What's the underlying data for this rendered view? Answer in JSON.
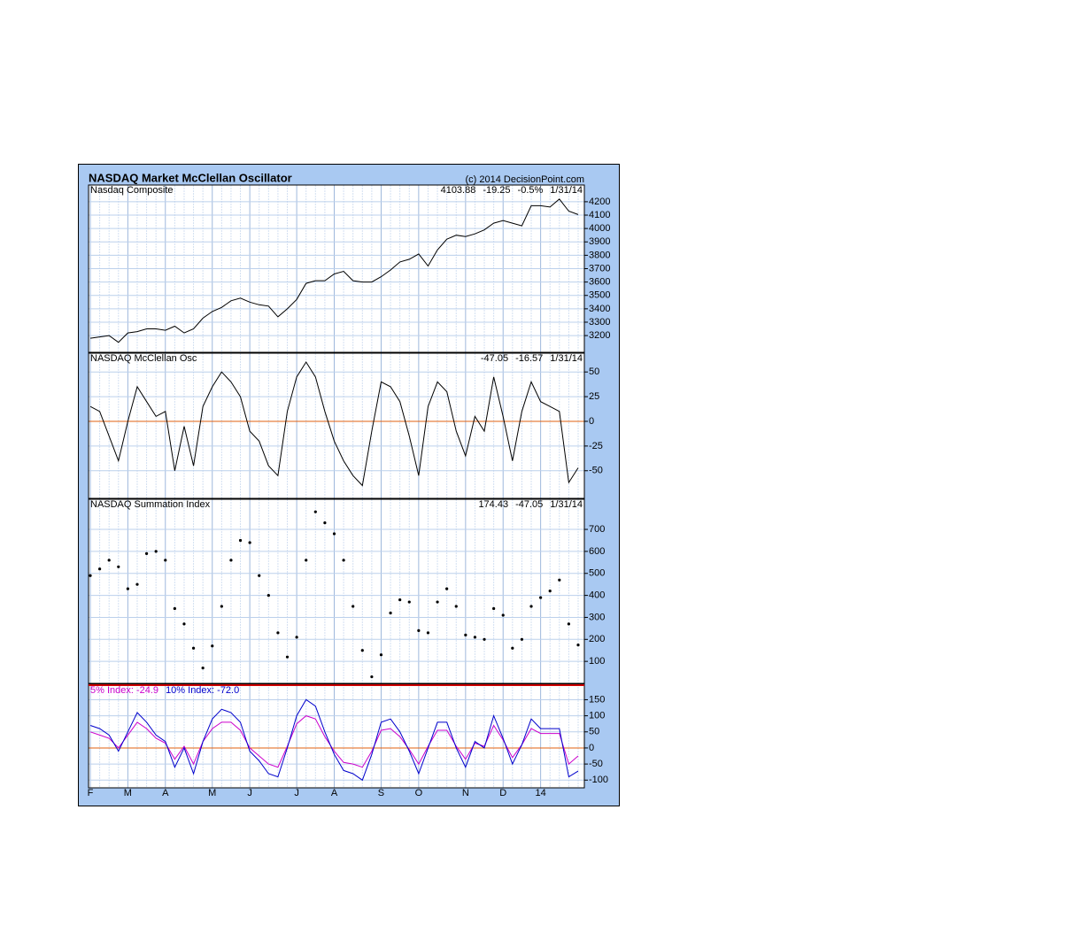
{
  "header": {
    "title": "NASDAQ Market McClellan Oscillator",
    "copyright": "(c) 2014 DecisionPoint.com"
  },
  "chart_data": [
    {
      "type": "line",
      "subtitle": "Nasdaq Composite",
      "info": [
        "4103.88",
        "-19.25",
        "-0.5%",
        "1/31/14"
      ],
      "color": "#000000",
      "values": [
        3180,
        3190,
        3200,
        3150,
        3220,
        3230,
        3250,
        3250,
        3240,
        3270,
        3220,
        3250,
        3330,
        3380,
        3410,
        3460,
        3480,
        3450,
        3430,
        3420,
        3340,
        3400,
        3470,
        3590,
        3610,
        3610,
        3660,
        3680,
        3610,
        3600,
        3600,
        3640,
        3690,
        3750,
        3770,
        3810,
        3720,
        3840,
        3920,
        3950,
        3940,
        3960,
        3990,
        4040,
        4060,
        4040,
        4020,
        4170,
        4170,
        4160,
        4220,
        4130,
        4104
      ],
      "ylim": [
        3075,
        4325
      ],
      "yticks": [
        3200,
        3300,
        3400,
        3500,
        3600,
        3700,
        3800,
        3900,
        4000,
        4100,
        4200
      ]
    },
    {
      "type": "line",
      "subtitle": "NASDAQ McClellan Osc",
      "info": [
        "-47.05",
        "-16.57",
        "1/31/14"
      ],
      "color": "#000000",
      "values": [
        15,
        10,
        -15,
        -40,
        0,
        35,
        20,
        5,
        10,
        -50,
        -5,
        -45,
        15,
        35,
        50,
        40,
        25,
        -10,
        -20,
        -45,
        -55,
        10,
        45,
        60,
        45,
        10,
        -20,
        -40,
        -55,
        -65,
        -10,
        40,
        35,
        20,
        -15,
        -55,
        15,
        40,
        30,
        -10,
        -35,
        5,
        -10,
        45,
        5,
        -40,
        10,
        40,
        20,
        15,
        10,
        -62,
        -47.05
      ],
      "ylim": [
        -78,
        69
      ],
      "yticks": [
        -50,
        -25,
        0,
        25,
        50
      ],
      "zero_line_color": "#e06010"
    },
    {
      "type": "scatter",
      "subtitle": "NASDAQ Summation Index",
      "info": [
        "174.43",
        "-47.05",
        "1/31/14"
      ],
      "color": "#000000",
      "values": [
        490,
        520,
        560,
        530,
        430,
        450,
        590,
        600,
        560,
        340,
        270,
        160,
        70,
        170,
        350,
        560,
        650,
        640,
        490,
        400,
        230,
        120,
        210,
        560,
        780,
        730,
        680,
        560,
        350,
        150,
        30,
        130,
        320,
        380,
        370,
        240,
        230,
        370,
        430,
        350,
        220,
        210,
        200,
        340,
        310,
        160,
        200,
        350,
        390,
        420,
        470,
        270,
        174.43
      ],
      "ylim": [
        0,
        837
      ],
      "yticks": [
        100,
        200,
        300,
        400,
        500,
        600,
        700
      ]
    },
    {
      "type": "line",
      "categories": [
        "F",
        null,
        null,
        null,
        "M",
        null,
        null,
        null,
        "A",
        null,
        null,
        null,
        null,
        "M",
        null,
        null,
        null,
        "J",
        null,
        null,
        null,
        null,
        "J",
        null,
        null,
        null,
        "A",
        null,
        null,
        null,
        null,
        "S",
        null,
        null,
        null,
        "O",
        null,
        null,
        null,
        null,
        "N",
        null,
        null,
        null,
        "D",
        null,
        null,
        null,
        "14",
        null,
        null,
        null,
        null
      ],
      "series": [
        {
          "name": "5% Index: -24.9",
          "color": "#cc00cc",
          "values": [
            50,
            40,
            30,
            0,
            40,
            80,
            60,
            30,
            15,
            -35,
            5,
            -50,
            20,
            60,
            80,
            80,
            55,
            0,
            -25,
            -50,
            -60,
            5,
            75,
            100,
            90,
            35,
            -10,
            -45,
            -50,
            -60,
            -10,
            55,
            60,
            35,
            -5,
            -50,
            5,
            55,
            55,
            5,
            -35,
            15,
            5,
            70,
            25,
            -30,
            10,
            60,
            45,
            45,
            45,
            -50,
            -24.9
          ]
        },
        {
          "name": "10% Index: -72.0",
          "color": "#0000cc",
          "values": [
            70,
            60,
            40,
            -10,
            50,
            110,
            80,
            40,
            20,
            -60,
            0,
            -80,
            20,
            90,
            120,
            110,
            80,
            -10,
            -40,
            -80,
            -90,
            0,
            100,
            150,
            130,
            50,
            -20,
            -70,
            -80,
            -100,
            -20,
            80,
            90,
            50,
            -10,
            -80,
            0,
            80,
            80,
            0,
            -60,
            20,
            0,
            100,
            30,
            -50,
            10,
            90,
            60,
            60,
            60,
            -90,
            -72
          ]
        }
      ],
      "ylim": [
        -124,
        198
      ],
      "yticks": [
        -100,
        -50,
        0,
        50,
        100,
        150
      ],
      "zero_line_color": "#e06010"
    }
  ]
}
